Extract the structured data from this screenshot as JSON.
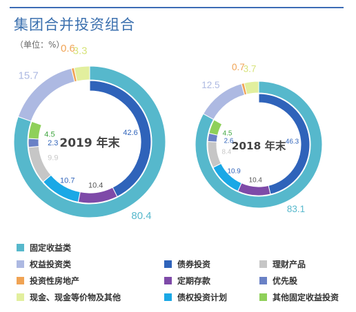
{
  "title": "集团合并投资组合",
  "unit": "（单位：%）",
  "colors": {
    "fixed_income": "#56b8cc",
    "equity": "#adb9e2",
    "property": "#f0a354",
    "cash": "#e2ef9e",
    "bonds": "#2f63ba",
    "deposits": "#7e4aa8",
    "preferred": "#6a81c6",
    "wealth": "#c6c6c6",
    "debt_plans": "#1aa8e6",
    "other_fixed": "#8fd05a"
  },
  "legend": [
    {
      "key": "fixed_income",
      "label": "固定收益类"
    },
    {
      "key": "equity",
      "label": "权益投资类"
    },
    {
      "key": "bonds",
      "label": "债券投资"
    },
    {
      "key": "wealth",
      "label": "理财产品"
    },
    {
      "key": "property",
      "label": "投资性房地产"
    },
    {
      "key": "deposits",
      "label": "定期存款"
    },
    {
      "key": "preferred",
      "label": "优先股"
    },
    {
      "key": "cash",
      "label": "现金、现金等价物及其他"
    },
    {
      "key": "debt_plans",
      "label": "债权投资计划"
    },
    {
      "key": "other_fixed",
      "label": "其他固定收益投资"
    }
  ],
  "chart_data": {
    "type": "pie",
    "charts": [
      {
        "center_label": "2019 年末",
        "outer": [
          {
            "key": "fixed_income",
            "value": 80.4
          },
          {
            "key": "equity",
            "value": 15.7
          },
          {
            "key": "property",
            "value": 0.6
          },
          {
            "key": "cash",
            "value": 3.3
          }
        ],
        "inner": [
          {
            "key": "bonds",
            "value": 42.6
          },
          {
            "key": "deposits",
            "value": 10.4
          },
          {
            "key": "debt_plans",
            "value": 10.7
          },
          {
            "key": "wealth",
            "value": 9.9
          },
          {
            "key": "preferred",
            "value": 2.3
          },
          {
            "key": "other_fixed",
            "value": 4.5
          }
        ]
      },
      {
        "center_label": "2018 年末",
        "outer": [
          {
            "key": "fixed_income",
            "value": 83.1
          },
          {
            "key": "equity",
            "value": 12.5
          },
          {
            "key": "property",
            "value": 0.7
          },
          {
            "key": "cash",
            "value": 3.7
          }
        ],
        "inner": [
          {
            "key": "bonds",
            "value": 46.3
          },
          {
            "key": "deposits",
            "value": 10.4
          },
          {
            "key": "debt_plans",
            "value": 10.9
          },
          {
            "key": "wealth",
            "value": 8.4
          },
          {
            "key": "preferred",
            "value": 2.6
          },
          {
            "key": "other_fixed",
            "value": 4.5
          }
        ]
      }
    ]
  }
}
